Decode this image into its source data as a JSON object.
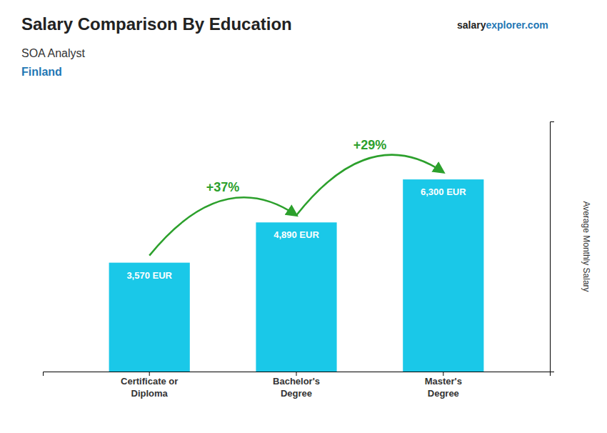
{
  "chart_data": {
    "type": "bar",
    "title": "Salary Comparison By Education",
    "subtitle": "SOA Analyst",
    "ylabel": "Average Monthly Salary",
    "annotations": [
      "+37%",
      "+29%",
      "Finland",
      "salary",
      "explorer.com"
    ],
    "categories": [
      "Certificate or\nDiploma",
      "Bachelor's\nDegree",
      "Master's\nDegree"
    ],
    "values": [
      3570,
      4890,
      6300
    ],
    "value_labels": [
      "3,570 EUR",
      "4,890 EUR",
      "6,300 EUR"
    ],
    "data_labels": true,
    "color": "#1ac8e8",
    "ylim": [
      0,
      8200
    ],
    "tick_labels": "x",
    "grid": false
  }
}
